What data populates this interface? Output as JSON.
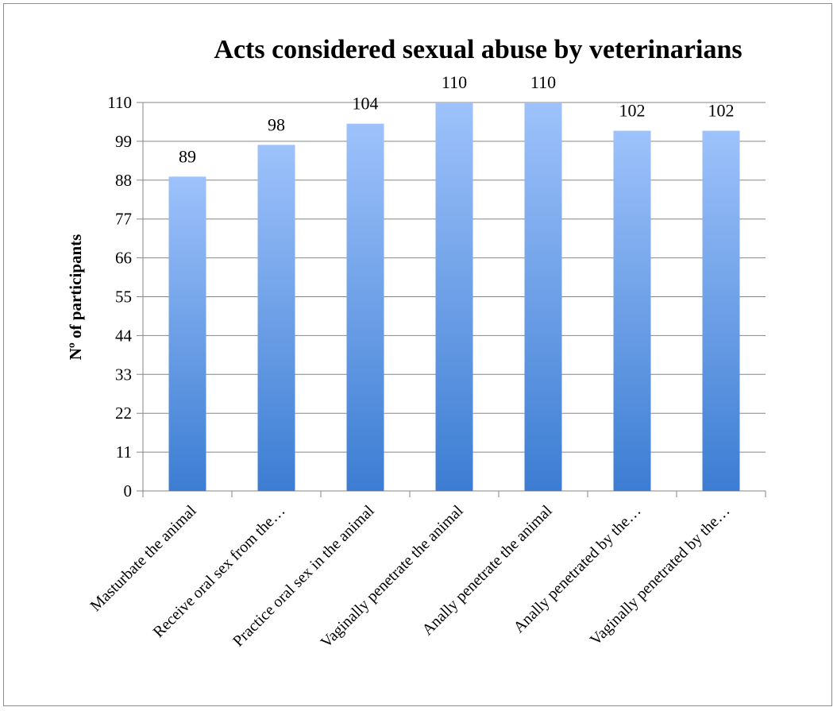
{
  "chart_data": {
    "type": "bar",
    "title": "Acts considered sexual abuse by veterinarians",
    "xlabel": "",
    "ylabel": "Nº of participants",
    "categories": [
      "Masturbate the animal",
      "Receive oral sex from the…",
      "Practice oral sex in the animal",
      "Vaginally penetrate the animal",
      "Anally penetrate the animal",
      "Anally penetrated by the…",
      "Vaginally  penetrated by the…"
    ],
    "values": [
      89,
      98,
      104,
      110,
      110,
      102,
      102
    ],
    "data_labels": [
      "89",
      "98",
      "104",
      "110",
      "110",
      "102",
      "102"
    ],
    "yticks": [
      "0",
      "11",
      "22",
      "33",
      "44",
      "55",
      "66",
      "77",
      "88",
      "99",
      "110"
    ],
    "ylim": [
      0,
      110
    ],
    "grid": true,
    "legend": "none",
    "colors": {
      "bar_top": "#9ec2fb",
      "bar_bottom": "#3c7dd3"
    }
  }
}
